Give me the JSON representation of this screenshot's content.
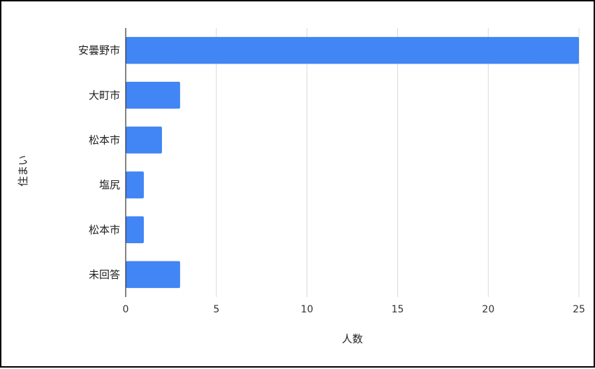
{
  "chart_data": {
    "type": "bar",
    "orientation": "horizontal",
    "title": "",
    "xlabel": "人数",
    "ylabel": "住まい",
    "categories": [
      "安曇野市",
      "大町市",
      "松本市",
      "塩尻",
      "松本市",
      "未回答"
    ],
    "values": [
      25,
      3,
      2,
      1,
      1,
      3
    ],
    "xlim": [
      0,
      25
    ],
    "xticks": [
      0,
      5,
      10,
      15,
      20,
      25
    ],
    "grid": true,
    "legend": "none",
    "bar_color": "#4285F4",
    "grid_color": "#d9d9d9",
    "axis_color": "#333333"
  }
}
